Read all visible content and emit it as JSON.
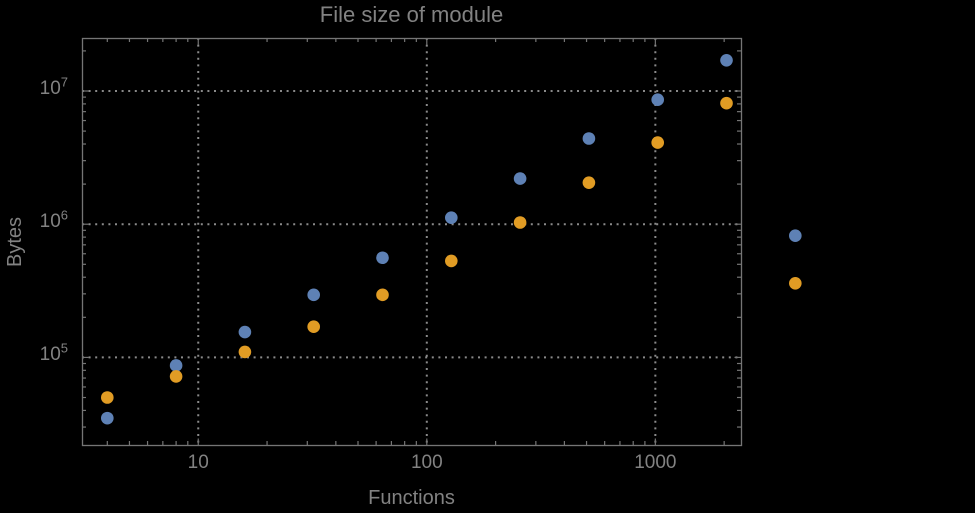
{
  "figure": {
    "background": "#000000",
    "text_color": "#828282",
    "frame_color": "#757575",
    "grid_color": "#8a8a8a"
  },
  "chart_data": {
    "type": "scatter",
    "title": "File size of module",
    "xlabel": "Functions",
    "ylabel": "Bytes",
    "x_scale": "log10",
    "y_scale": "log10",
    "xlim": [
      3.1,
      2370
    ],
    "ylim": [
      22000,
      25000000
    ],
    "grid": "major-dotted",
    "legend_position": "none",
    "marker": "filled-circle",
    "x_ticks": [
      {
        "value": 10,
        "label": "10"
      },
      {
        "value": 100,
        "label": "100"
      },
      {
        "value": 1000,
        "label": "1000"
      }
    ],
    "y_ticks": [
      {
        "value": 100000,
        "base": "10",
        "exp": "5"
      },
      {
        "value": 1000000,
        "base": "10",
        "exp": "6"
      },
      {
        "value": 10000000,
        "base": "10",
        "exp": "7"
      }
    ],
    "series": [
      {
        "name": "series-1-blue",
        "color": "#5e81b5",
        "points": [
          [
            4,
            35000
          ],
          [
            8,
            87000
          ],
          [
            16,
            155000
          ],
          [
            32,
            295000
          ],
          [
            64,
            560000
          ],
          [
            128,
            1120000
          ],
          [
            256,
            2200000
          ],
          [
            512,
            4400000
          ],
          [
            1024,
            8600000
          ],
          [
            2048,
            17000000
          ],
          [
            4096,
            820000
          ]
        ]
      },
      {
        "name": "series-2-orange",
        "color": "#e19c24",
        "points": [
          [
            4,
            50000
          ],
          [
            8,
            72000
          ],
          [
            16,
            110000
          ],
          [
            32,
            170000
          ],
          [
            64,
            295000
          ],
          [
            128,
            530000
          ],
          [
            256,
            1030000
          ],
          [
            512,
            2050000
          ],
          [
            1024,
            4100000
          ],
          [
            2048,
            8100000
          ],
          [
            4096,
            360000
          ]
        ]
      }
    ]
  }
}
